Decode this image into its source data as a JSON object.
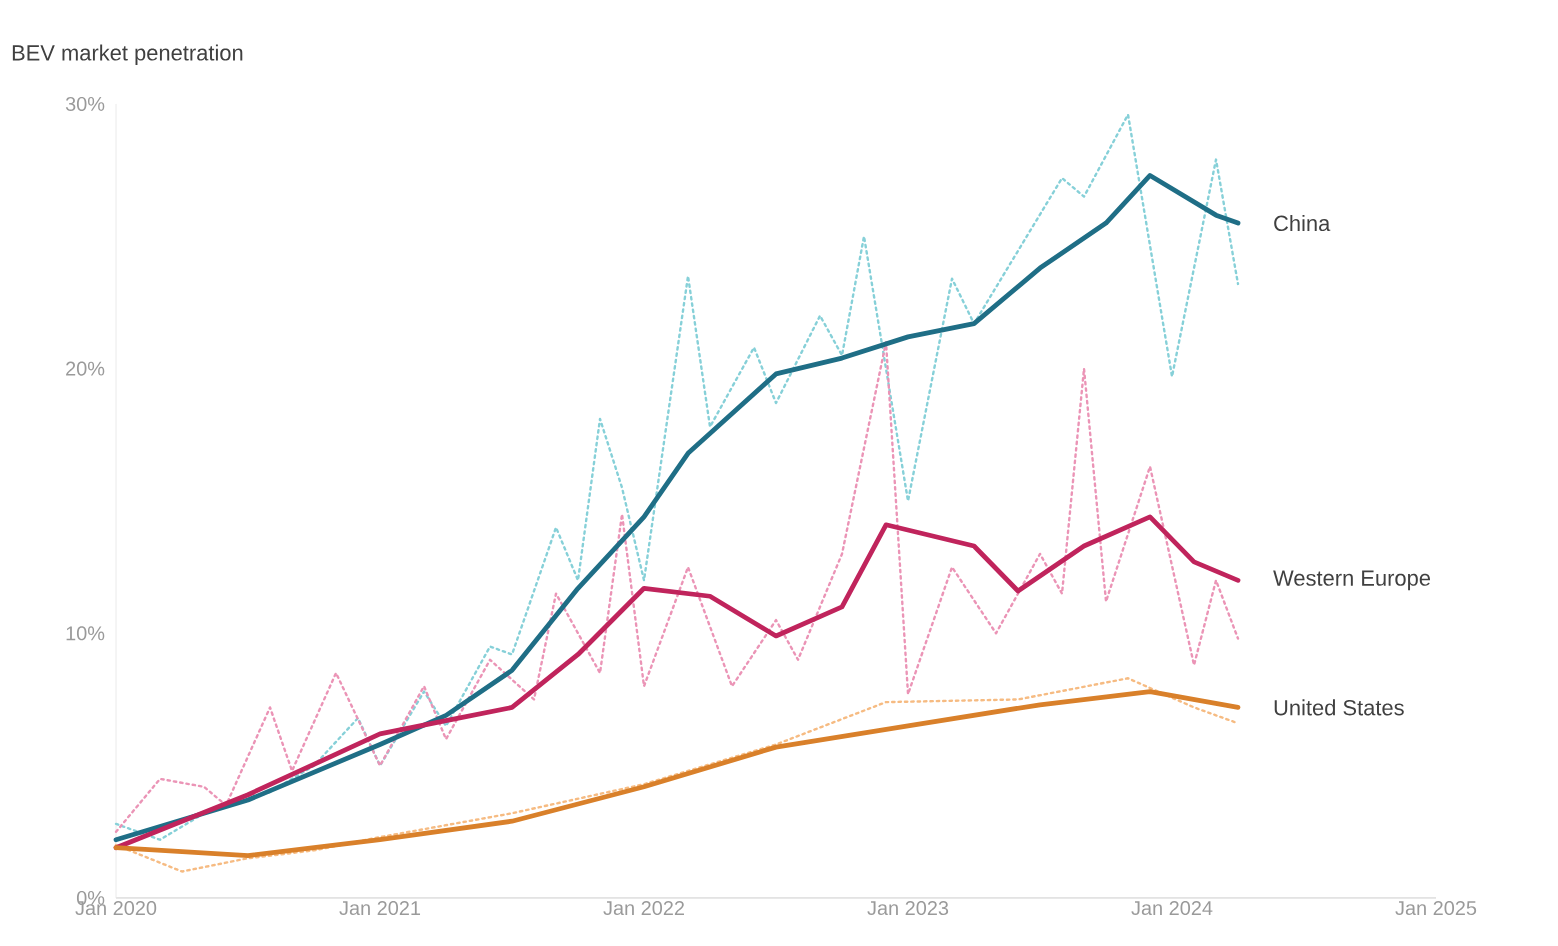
{
  "chart_data": {
    "type": "line",
    "ylabel": "BEV market penetration",
    "xlim": [
      "2020-01",
      "2025-01"
    ],
    "ylim": [
      0,
      30
    ],
    "marker": "none",
    "xticks": [
      {
        "value": "2020-01",
        "label": "Jan 2020"
      },
      {
        "value": "2021-01",
        "label": "Jan 2021"
      },
      {
        "value": "2022-01",
        "label": "Jan 2022"
      },
      {
        "value": "2023-01",
        "label": "Jan 2023"
      },
      {
        "value": "2024-01",
        "label": "Jan 2024"
      },
      {
        "value": "2025-01",
        "label": "Jan 2025"
      }
    ],
    "yticks": [
      {
        "value": 0,
        "label": "0%"
      },
      {
        "value": 10,
        "label": "10%"
      },
      {
        "value": 20,
        "label": "20%"
      },
      {
        "value": 30,
        "label": "30%"
      }
    ],
    "series": [
      {
        "color": "#86d0d8",
        "line_style": "dotted",
        "x": [
          "2020-01",
          "2020-03",
          "2020-05",
          "2020-08",
          "2020-10",
          "2020-12",
          "2021-01",
          "2021-03",
          "2021-04",
          "2021-06",
          "2021-07",
          "2021-09",
          "2021-10",
          "2021-11",
          "2021-12",
          "2022-01",
          "2022-03",
          "2022-04",
          "2022-06",
          "2022-07",
          "2022-09",
          "2022-10",
          "2022-11",
          "2023-01",
          "2023-03",
          "2023-04",
          "2023-08",
          "2023-09",
          "2023-11",
          "2024-01",
          "2024-03",
          "2024-04"
        ],
        "values": [
          2.8,
          2.2,
          3.2,
          4.0,
          5.0,
          6.8,
          5.0,
          7.8,
          6.5,
          9.5,
          9.2,
          14.0,
          12.0,
          18.1,
          15.5,
          12.0,
          23.5,
          17.8,
          20.8,
          18.7,
          22.0,
          20.5,
          25.0,
          15.0,
          23.4,
          21.7,
          27.2,
          26.5,
          29.6,
          19.7,
          27.9,
          23.2
        ]
      },
      {
        "color": "#eb94b6",
        "line_style": "dotted",
        "x": [
          "2020-01",
          "2020-03",
          "2020-05",
          "2020-06",
          "2020-08",
          "2020-09",
          "2020-11",
          "2021-01",
          "2021-03",
          "2021-04",
          "2021-06",
          "2021-08",
          "2021-09",
          "2021-11",
          "2021-12",
          "2022-01",
          "2022-03",
          "2022-05",
          "2022-07",
          "2022-08",
          "2022-10",
          "2022-12",
          "2023-01",
          "2023-03",
          "2023-05",
          "2023-07",
          "2023-08",
          "2023-09",
          "2023-10",
          "2023-12",
          "2024-02",
          "2024-03",
          "2024-04"
        ],
        "values": [
          2.5,
          4.5,
          4.2,
          3.5,
          7.2,
          4.8,
          8.5,
          5.0,
          8.0,
          6.0,
          9.0,
          7.5,
          11.5,
          8.5,
          14.5,
          8.0,
          12.5,
          8.0,
          10.5,
          9.0,
          13.0,
          21.0,
          7.7,
          12.5,
          10.0,
          13.0,
          11.5,
          20.0,
          11.2,
          16.3,
          8.8,
          12.0,
          9.8
        ]
      },
      {
        "color": "#f6bb82",
        "line_style": "dotted",
        "x": [
          "2020-01",
          "2020-04",
          "2020-07",
          "2020-10",
          "2021-01",
          "2021-07",
          "2022-01",
          "2022-07",
          "2022-12",
          "2023-06",
          "2023-11",
          "2024-02",
          "2024-04"
        ],
        "values": [
          2.0,
          1.0,
          1.5,
          1.8,
          2.3,
          3.2,
          4.3,
          5.8,
          7.4,
          7.5,
          8.3,
          7.2,
          6.6
        ]
      },
      {
        "name": "China",
        "color": "#1f6e86",
        "x": [
          "2020-01",
          "2020-07",
          "2021-01",
          "2021-04",
          "2021-07",
          "2021-10",
          "2022-01",
          "2022-03",
          "2022-07",
          "2022-10",
          "2023-01",
          "2023-04",
          "2023-07",
          "2023-10",
          "2023-12",
          "2024-03",
          "2024-04"
        ],
        "values": [
          2.2,
          3.7,
          5.8,
          6.9,
          8.6,
          11.7,
          14.4,
          16.8,
          19.8,
          20.4,
          21.2,
          21.7,
          23.8,
          25.5,
          27.3,
          25.8,
          25.5
        ]
      },
      {
        "name": "Western Europe",
        "color": "#c0245c",
        "x": [
          "2020-01",
          "2020-07",
          "2021-01",
          "2021-04",
          "2021-07",
          "2021-10",
          "2022-01",
          "2022-04",
          "2022-07",
          "2022-10",
          "2022-12",
          "2023-04",
          "2023-06",
          "2023-09",
          "2023-12",
          "2024-02",
          "2024-04"
        ],
        "values": [
          1.9,
          3.9,
          6.2,
          6.7,
          7.2,
          9.2,
          11.7,
          11.4,
          9.9,
          11.0,
          14.1,
          13.3,
          11.6,
          13.3,
          14.4,
          12.7,
          12.0
        ]
      },
      {
        "name": "United States",
        "color": "#d9802a",
        "x": [
          "2020-01",
          "2020-07",
          "2021-01",
          "2021-07",
          "2022-01",
          "2022-07",
          "2023-01",
          "2023-07",
          "2023-12",
          "2024-04"
        ],
        "values": [
          1.9,
          1.6,
          2.2,
          2.9,
          4.2,
          5.7,
          6.5,
          7.3,
          7.8,
          7.2
        ]
      }
    ]
  }
}
